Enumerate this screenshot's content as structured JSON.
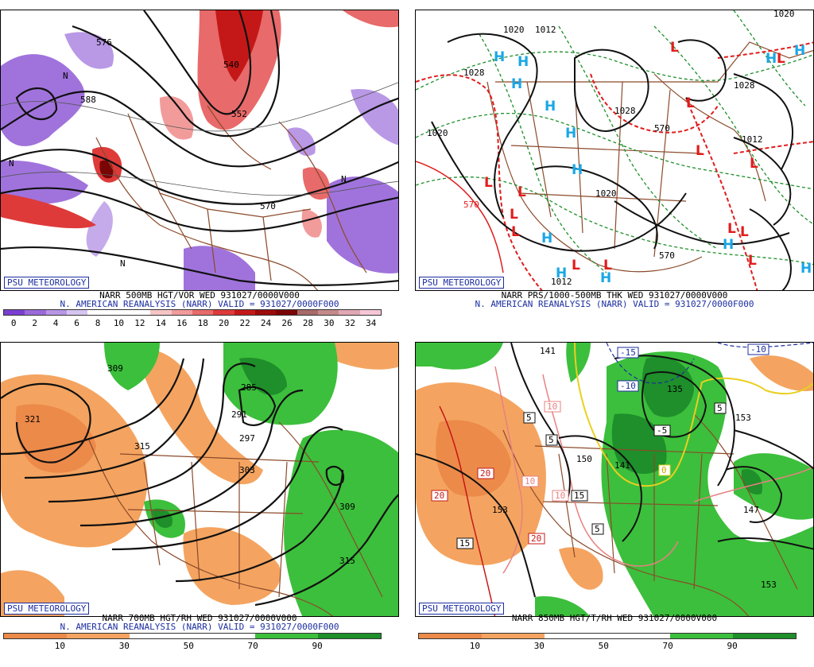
{
  "panels": {
    "p500": {
      "badge": "PSU METEOROLOGY",
      "caption1": "NARR 500MB HGT/VOR WED 931027/0000V000",
      "caption2": "N. AMERICAN REANALYSIS (NARR) VALID = 931027/0000F000",
      "ticks": [
        "0",
        "2",
        "4",
        "6",
        "8",
        "10",
        "12",
        "14",
        "16",
        "18",
        "20",
        "22",
        "24",
        "26",
        "28",
        "30",
        "32",
        "34"
      ],
      "colors": [
        "#7a3fd1",
        "#9b6ad9",
        "#b896e6",
        "#d6c4f0",
        "#ffffff",
        "#ffffff",
        "#ffffff",
        "#f6c6c6",
        "#f29b9b",
        "#e86a6a",
        "#de3a3a",
        "#c41818",
        "#9c0a0a",
        "#7a0505",
        "#a86a6a",
        "#c48a8a",
        "#e0a8b4",
        "#f6c6d6"
      ],
      "contour_labels": [
        "576",
        "588",
        "540",
        "552",
        "570",
        "N"
      ]
    },
    "pmslp": {
      "badge": "PSU METEOROLOGY",
      "caption1": "NARR PRS/1000-500MB THK WED 931027/0000V000",
      "caption2": "N. AMERICAN REANALYSIS (NARR) VALID = 931027/0000F000",
      "contour_labels": [
        "1020",
        "1012",
        "1028",
        "1020",
        "1028",
        "1020",
        "1012",
        "1012",
        "1028",
        "570",
        "570",
        "1020"
      ],
      "highs": "H",
      "lows": "L"
    },
    "p700": {
      "badge": "PSU METEOROLOGY",
      "caption1": "NARR 700MB HGT/RH WED 931027/0000V000",
      "caption2": "N. AMERICAN REANALYSIS (NARR) VALID = 931027/0000F000",
      "ticks": [
        "10",
        "30",
        "50",
        "70",
        "90"
      ],
      "contour_labels": [
        "309",
        "321",
        "315",
        "285",
        "291",
        "297",
        "303",
        "309",
        "315"
      ]
    },
    "p850": {
      "badge": "PSU METEOROLOGY",
      "caption1": "NARR 850MB HGT/T/RH WED 931027/0000V000",
      "ticks": [
        "10",
        "30",
        "50",
        "70",
        "90"
      ],
      "contour_labels": [
        "141",
        "-15",
        "-10",
        "-10",
        "135",
        "10",
        "5",
        "5",
        "153",
        "150",
        "20",
        "10",
        "-5",
        "0",
        "5",
        "153",
        "141",
        "20",
        "10",
        "15",
        "5",
        "15",
        "20",
        "147",
        "153"
      ]
    }
  },
  "colors": {
    "caption_blue": "#1c2ea0",
    "rh_orange": "#f4a460",
    "rh_orange_dark": "#ec8a4a",
    "rh_green": "#3cbf3c",
    "rh_green_dark": "#1e8f2a",
    "map_brown": "#8b4a2b",
    "high_blue": "#1aa7e6",
    "low_red": "#e21c1c"
  }
}
